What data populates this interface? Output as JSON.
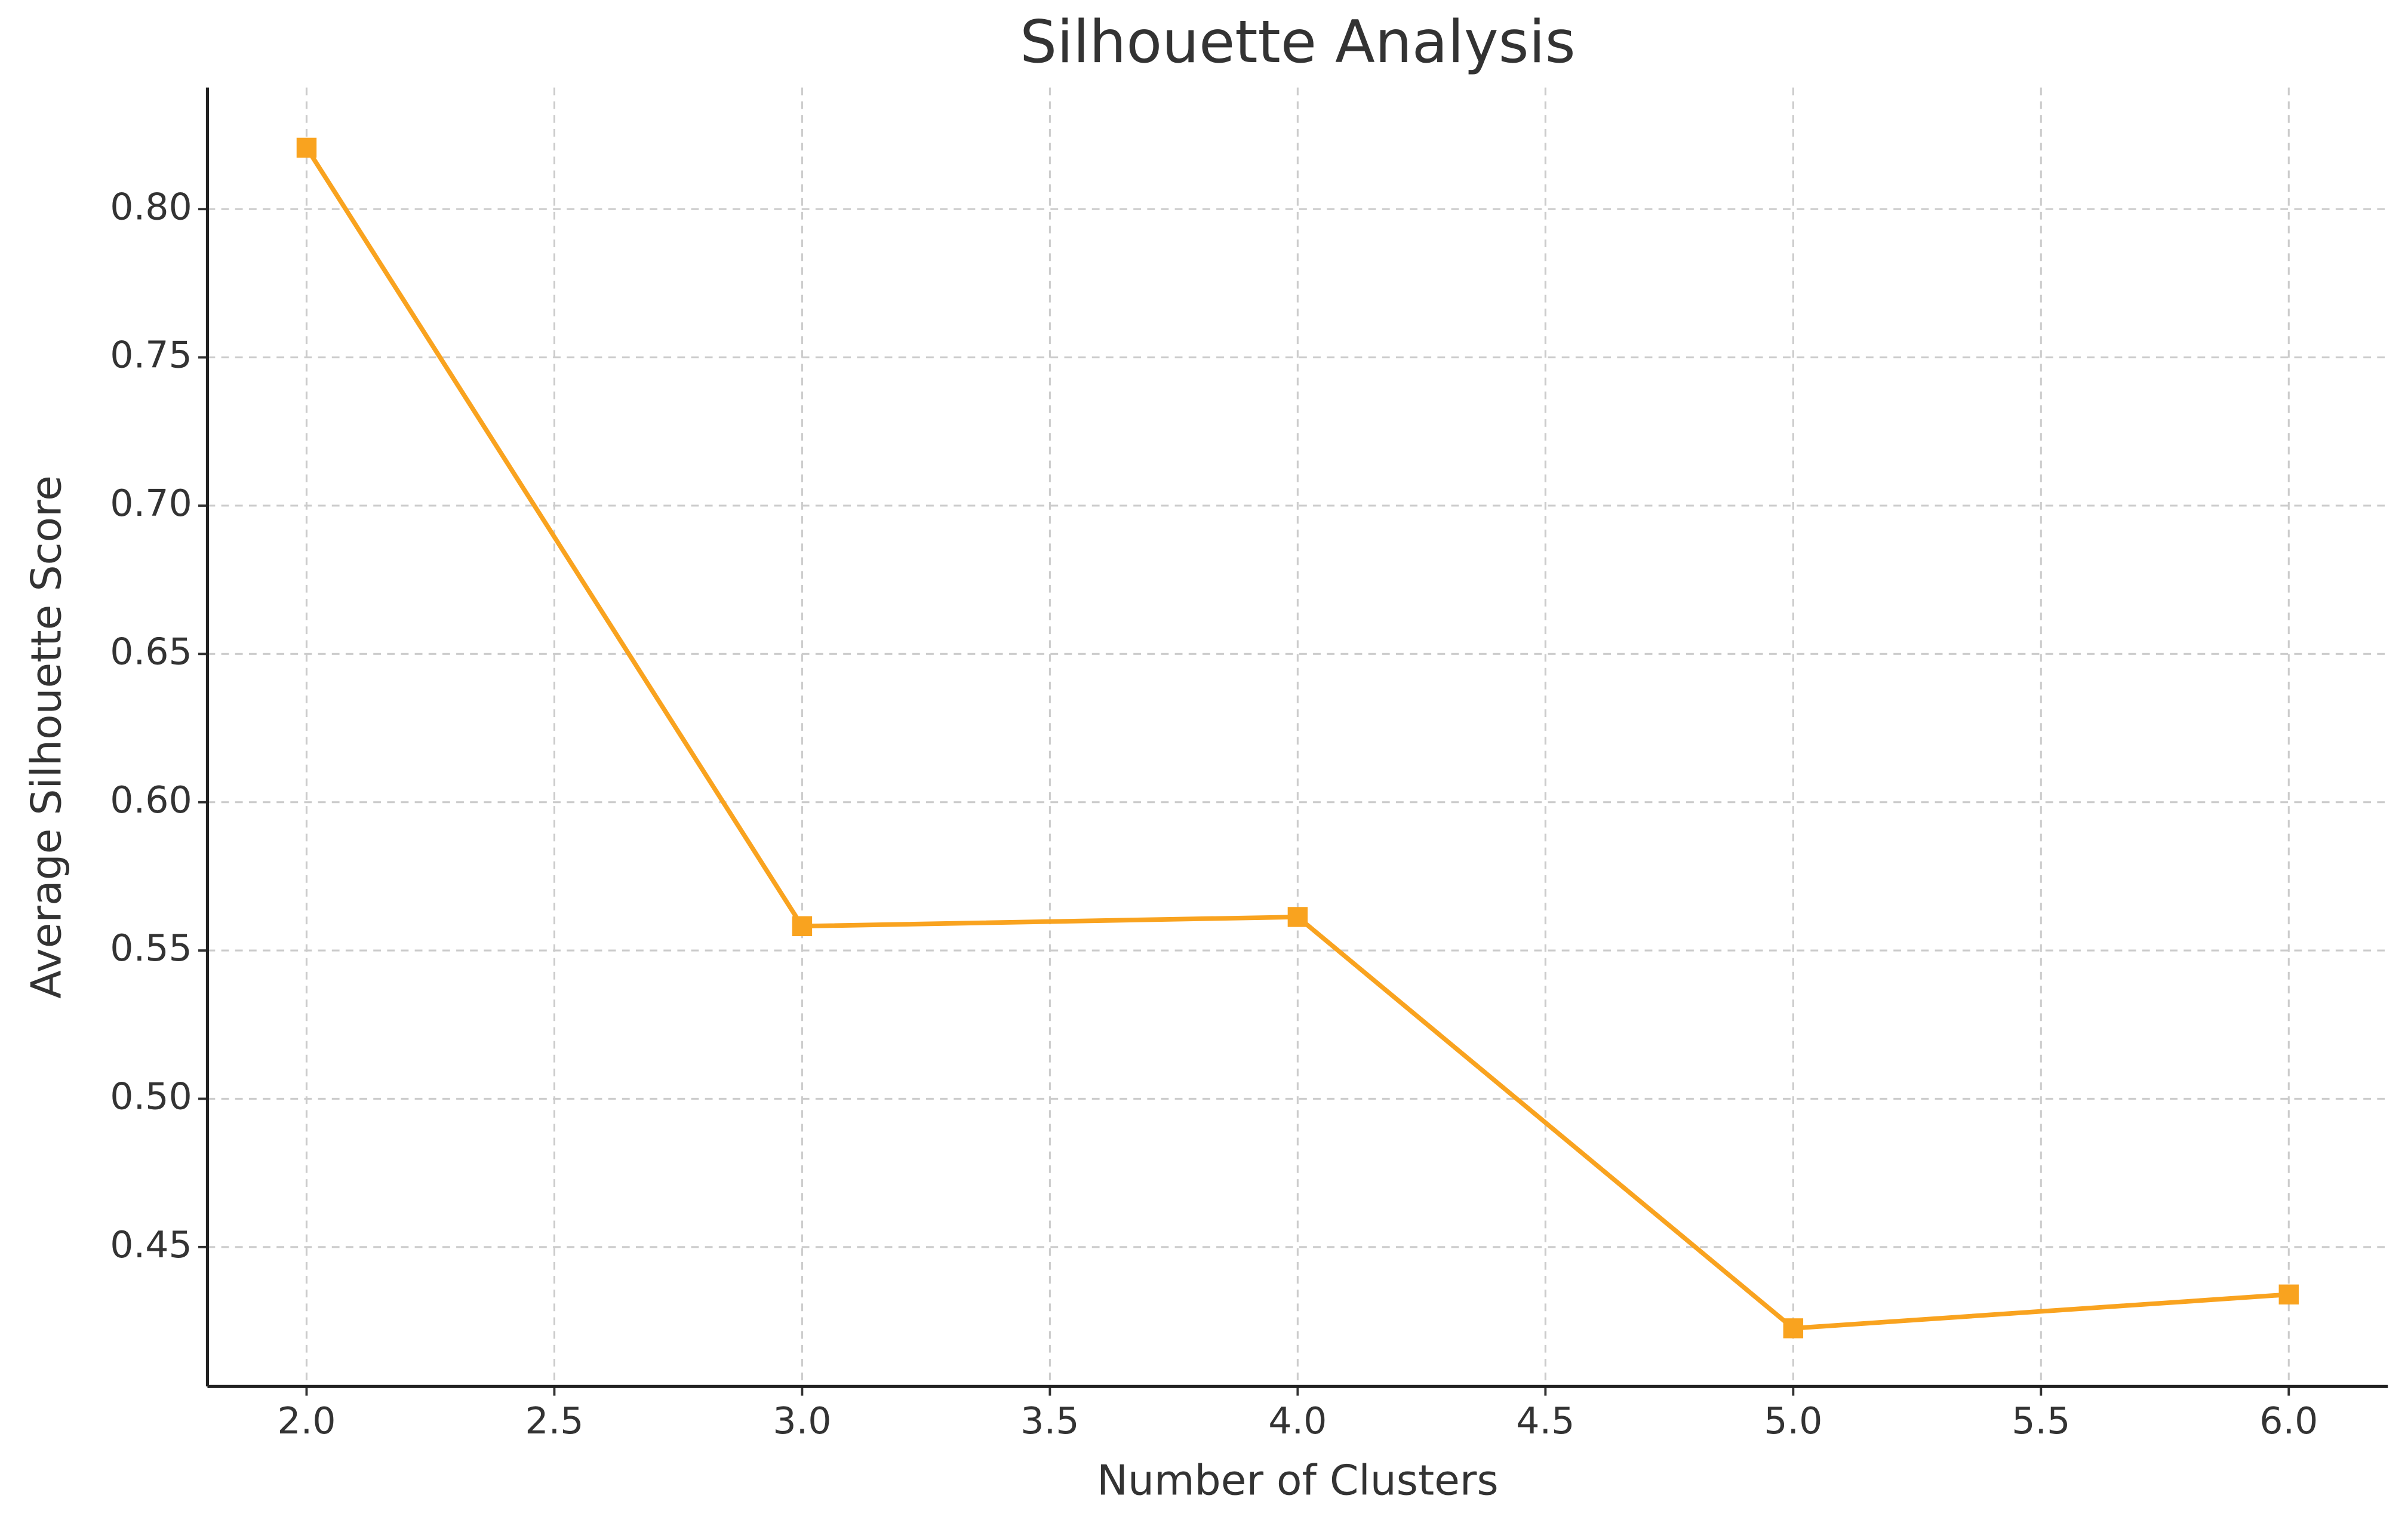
{
  "chart_data": {
    "type": "line",
    "title": "Silhouette Analysis",
    "x_label": "Number of Clusters",
    "y_label": "Average Silhouette Score",
    "x": [
      2,
      3,
      4,
      5,
      6
    ],
    "series": [
      {
        "color": "#f9a31f",
        "marker": "square",
        "values": [
          0.8207,
          0.5582,
          0.5613,
          0.4226,
          0.434
        ]
      }
    ],
    "xlim": [
      1.8,
      6.2
    ],
    "xticks": [
      {
        "value": 2,
        "label": "2.0"
      },
      {
        "value": 2.5,
        "label": "2.5"
      },
      {
        "value": 3,
        "label": "3.0"
      },
      {
        "value": 3.5,
        "label": "3.5"
      },
      {
        "value": 4,
        "label": "4.0"
      },
      {
        "value": 4.5,
        "label": "4.5"
      },
      {
        "value": 5,
        "label": "5.0"
      },
      {
        "value": 5.5,
        "label": "5.5"
      },
      {
        "value": 6,
        "label": "6.0"
      }
    ],
    "ylim": [
      0.403,
      0.841
    ],
    "yticks": [
      0.45,
      {
        "value": 0.5,
        "label": "0.50"
      },
      0.55,
      {
        "value": 0.6,
        "label": "0.60"
      },
      0.65,
      {
        "value": 0.7,
        "label": "0.70"
      },
      0.75,
      {
        "value": 0.8,
        "label": "0.80"
      }
    ],
    "grid": true
  }
}
